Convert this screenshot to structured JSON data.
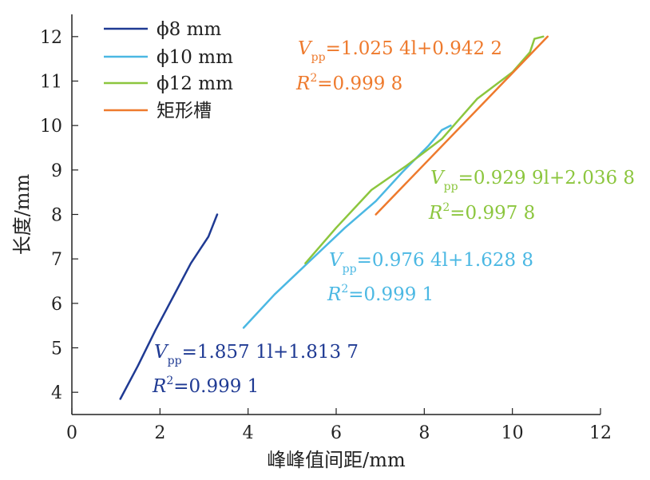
{
  "chart_data": {
    "type": "line",
    "xlabel": "峰峰值间距/mm",
    "ylabel": "长度/mm",
    "xlim": [
      0,
      12
    ],
    "ylim": [
      3.5,
      12.5
    ],
    "xticks": [
      0,
      2,
      4,
      6,
      8,
      10,
      12
    ],
    "yticks": [
      4,
      5,
      6,
      7,
      8,
      9,
      10,
      11,
      12
    ],
    "grid": false,
    "legend_position": "top-left",
    "series": [
      {
        "name": "ϕ8 mm",
        "color": "#1f3a93",
        "x": [
          1.1,
          1.5,
          1.9,
          2.3,
          2.7,
          3.1,
          3.3
        ],
        "y": [
          3.85,
          4.6,
          5.4,
          6.15,
          6.9,
          7.5,
          8.0
        ]
      },
      {
        "name": "ϕ10 mm",
        "color": "#4bb8e3",
        "x": [
          3.9,
          4.6,
          5.4,
          6.2,
          6.9,
          7.5,
          8.1,
          8.4,
          8.6
        ],
        "y": [
          5.45,
          6.2,
          6.95,
          7.7,
          8.3,
          8.95,
          9.55,
          9.9,
          10.0
        ]
      },
      {
        "name": "ϕ12 mm",
        "color": "#8cc63e",
        "x": [
          5.3,
          6.0,
          6.8,
          7.6,
          8.4,
          9.2,
          10.0,
          10.4,
          10.5,
          10.7
        ],
        "y": [
          6.9,
          7.7,
          8.55,
          9.1,
          9.7,
          10.6,
          11.2,
          11.65,
          11.95,
          12.0
        ]
      },
      {
        "name": "矩形槽",
        "color": "#ee7a2d",
        "x": [
          6.9,
          10.8
        ],
        "y": [
          8.0,
          12.0
        ]
      }
    ],
    "annotations": [
      {
        "series": "ϕ8 mm",
        "color": "#1f3a93",
        "v": "V",
        "sub": "pp",
        "eq": "=1.857 1l+1.813 7",
        "r": "R",
        "r2": "=0.999 1"
      },
      {
        "series": "ϕ10 mm",
        "color": "#4bb8e3",
        "v": "V",
        "sub": "pp",
        "eq": "=0.976 4l+1.628 8",
        "r": "R",
        "r2": "=0.999 1"
      },
      {
        "series": "ϕ12 mm",
        "color": "#8cc63e",
        "v": "V",
        "sub": "pp",
        "eq": "=0.929 9l+2.036 8",
        "r": "R",
        "r2": "=0.997 8"
      },
      {
        "series": "矩形槽",
        "color": "#ee7a2d",
        "v": "V",
        "sub": "pp",
        "eq": "=1.025 4l+0.942 2",
        "r": "R",
        "r2": "=0.999 8"
      }
    ]
  }
}
